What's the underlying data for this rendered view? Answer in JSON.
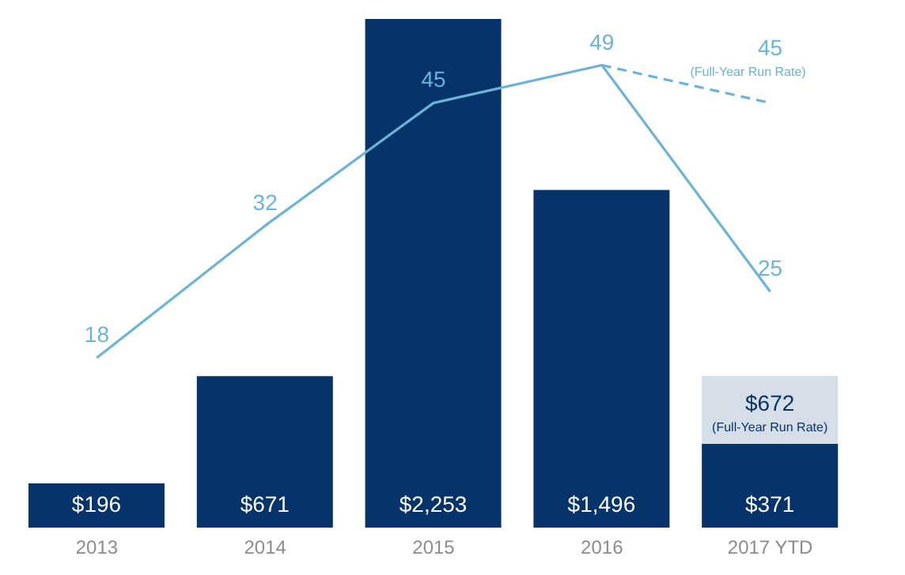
{
  "chart_data": {
    "type": "bar",
    "categories": [
      "2013",
      "2014",
      "2015",
      "2016",
      "2017 YTD"
    ],
    "series": [
      {
        "color": "#d6dee7",
        "values": [
          null,
          null,
          null,
          null,
          672
        ],
        "value_labels": [
          null,
          null,
          null,
          null,
          "$672"
        ]
      },
      {
        "color": "#06336a",
        "values": [
          196,
          671,
          2253,
          1496,
          371
        ],
        "value_labels": [
          "$196",
          "$671",
          "$2,253",
          "$1,496",
          "$371"
        ]
      },
      {
        "type": "line",
        "axis": "y2",
        "color": "#6bb3d8",
        "line_style": "solid",
        "values": [
          18,
          32,
          45,
          49,
          25
        ],
        "value_labels": [
          "18",
          "32",
          "45",
          "49",
          "25"
        ]
      },
      {
        "type": "line",
        "axis": "y2",
        "color": "#6bb3d8",
        "line_style": "dashed",
        "values": [
          null,
          null,
          null,
          49,
          45
        ],
        "value_labels": [
          null,
          null,
          null,
          null,
          "45"
        ]
      }
    ],
    "annotations": [
      "(Full-Year Run Rate)",
      "(Full-Year Run Rate)"
    ],
    "grid": false,
    "legend": false,
    "marker": "none",
    "tick_labels": "x"
  }
}
